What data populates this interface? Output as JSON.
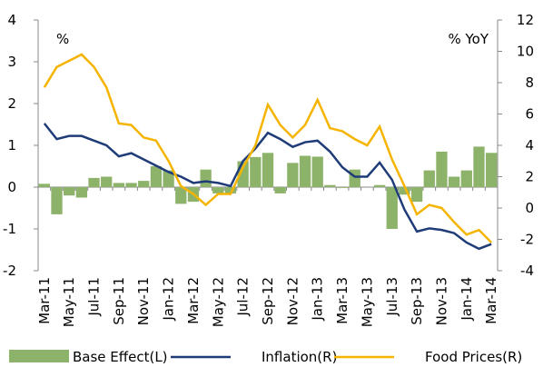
{
  "chart_data": {
    "type": "bar-line",
    "y_unit_label": "%",
    "y2_unit_label": "% YoY",
    "categories": [
      "Mar-11",
      null,
      "May-11",
      null,
      "Jul-11",
      null,
      "Sep-11",
      null,
      "Nov-11",
      null,
      "Jan-12",
      null,
      "Mar-12",
      null,
      "May-12",
      null,
      "Jul-12",
      null,
      "Sep-12",
      null,
      "Nov-12",
      null,
      "Jan-13",
      null,
      "Mar-13",
      null,
      "May-13",
      null,
      "Jul-13",
      null,
      "Sep-13",
      null,
      "Nov-13",
      null,
      "Jan-14",
      null,
      "Mar-14"
    ],
    "ylim": [
      -2,
      4
    ],
    "yticks": [
      -2,
      -1,
      0,
      1,
      2,
      3,
      4
    ],
    "y2lim": [
      -4,
      12
    ],
    "y2ticks": [
      -4,
      -2,
      0,
      2,
      4,
      6,
      8,
      10,
      12
    ],
    "series": [
      {
        "name": "Base Effect(L)",
        "type": "bar",
        "color": "#8db36b",
        "values": [
          0.08,
          -0.65,
          -0.2,
          -0.25,
          0.22,
          0.25,
          0.1,
          0.1,
          0.15,
          0.5,
          0.4,
          -0.4,
          -0.35,
          0.42,
          -0.15,
          -0.15,
          0.62,
          0.72,
          0.82,
          -0.15,
          0.58,
          0.75,
          0.73,
          0.05,
          -0.02,
          0.42,
          0.0,
          0.05,
          -1.0,
          -0.18,
          -0.35,
          0.4,
          0.85,
          0.25,
          0.4,
          0.97,
          0.82
        ]
      },
      {
        "name": "Inflation(R)",
        "type": "line",
        "axis": "y2",
        "color": "#1f3c78",
        "values": [
          5.4,
          4.4,
          4.6,
          4.6,
          4.3,
          4.0,
          3.3,
          3.5,
          3.1,
          2.7,
          2.3,
          2.0,
          1.6,
          1.7,
          1.6,
          1.4,
          3.0,
          3.8,
          4.8,
          4.4,
          3.9,
          4.2,
          4.3,
          3.6,
          2.6,
          2.0,
          2.0,
          2.9,
          1.8,
          -0.1,
          -1.5,
          -1.3,
          -1.4,
          -1.6,
          -2.2,
          -2.6,
          -2.3
        ]
      },
      {
        "name": "Food Prices(R)",
        "type": "line",
        "axis": "y2",
        "color": "#f5b400",
        "values": [
          7.7,
          9.0,
          9.4,
          9.8,
          9.0,
          7.7,
          5.4,
          5.3,
          4.5,
          4.3,
          3.0,
          1.4,
          0.9,
          0.2,
          0.9,
          0.9,
          2.6,
          4.0,
          6.6,
          5.3,
          4.5,
          5.3,
          6.9,
          5.1,
          4.9,
          4.4,
          4.0,
          5.2,
          3.1,
          1.4,
          -0.4,
          0.2,
          0.0,
          -0.9,
          -1.7,
          -1.4,
          -2.2
        ]
      }
    ]
  }
}
